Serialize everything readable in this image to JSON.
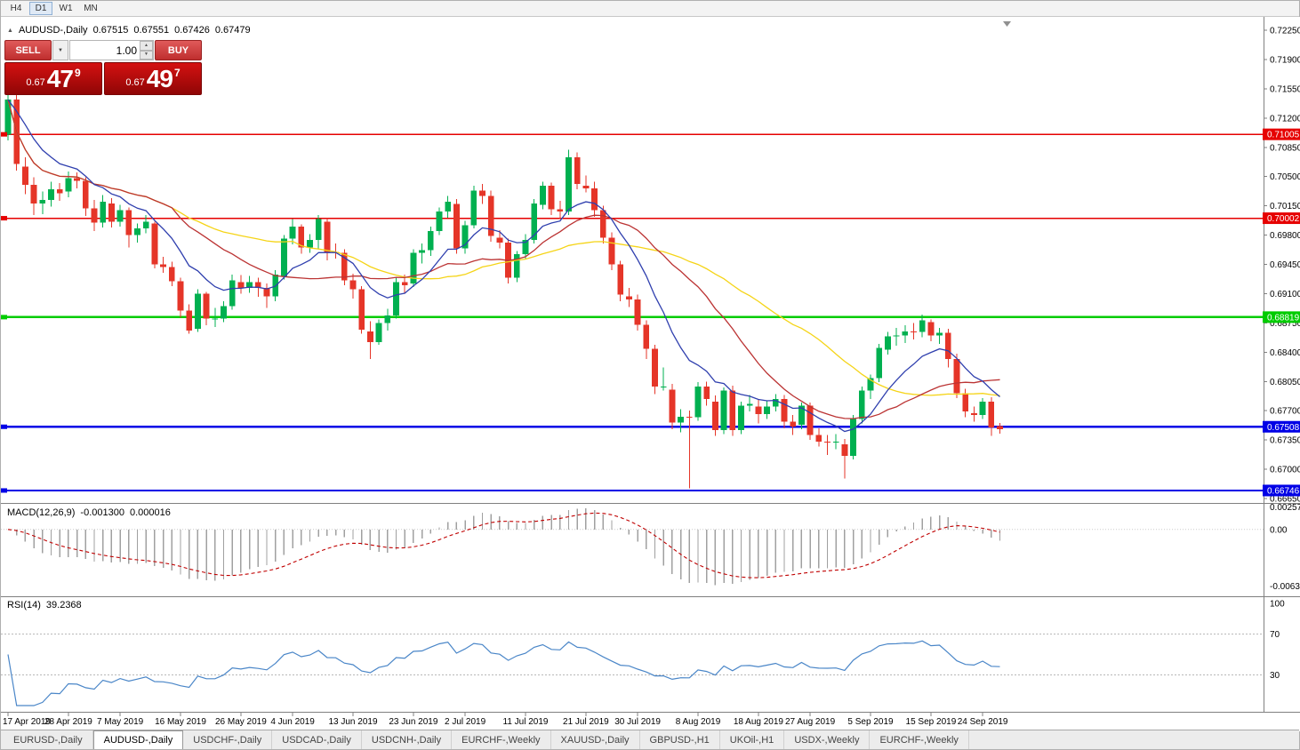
{
  "toolbar": {
    "timeframes": [
      {
        "label": "H4",
        "active": false
      },
      {
        "label": "D1",
        "active": true
      },
      {
        "label": "W1",
        "active": false
      },
      {
        "label": "MN",
        "active": false
      }
    ]
  },
  "header": {
    "symbol": "AUDUSD-,Daily",
    "open": "0.67515",
    "high": "0.67551",
    "low": "0.67426",
    "close": "0.67479"
  },
  "trade_widget": {
    "sell_label": "SELL",
    "buy_label": "BUY",
    "lot_size": "1.00",
    "sell_price": {
      "prefix": "0.67",
      "big": "47",
      "sup": "9"
    },
    "buy_price": {
      "prefix": "0.67",
      "big": "49",
      "sup": "7"
    }
  },
  "price_axis": {
    "labels": [
      "0.72250",
      "0.71900",
      "0.71550",
      "0.71200",
      "0.70850",
      "0.70500",
      "0.70150",
      "0.69800",
      "0.69450",
      "0.69100",
      "0.68750",
      "0.68400",
      "0.68050",
      "0.67700",
      "0.67350",
      "0.67000",
      "0.66650"
    ]
  },
  "indicators": {
    "macd": {
      "name": "MACD(12,26,9)",
      "value_main": "-0.001300",
      "value_signal": "0.000016",
      "axis_labels": {
        "max": "0.0025740",
        "zero": "0.00",
        "min": "-0.0063260"
      }
    },
    "rsi": {
      "name": "RSI(14)",
      "value": "39.2368",
      "levels": [
        "100",
        "70",
        "30"
      ]
    }
  },
  "time_axis": {
    "labels": [
      {
        "text": "17 Apr 2019",
        "i": 0
      },
      {
        "text": "28 Apr 2019",
        "i": 7
      },
      {
        "text": "7 May 2019",
        "i": 13
      },
      {
        "text": "16 May 2019",
        "i": 20
      },
      {
        "text": "26 May 2019",
        "i": 27
      },
      {
        "text": "4 Jun 2019",
        "i": 33
      },
      {
        "text": "13 Jun 2019",
        "i": 40
      },
      {
        "text": "23 Jun 2019",
        "i": 47
      },
      {
        "text": "2 Jul 2019",
        "i": 53
      },
      {
        "text": "11 Jul 2019",
        "i": 60
      },
      {
        "text": "21 Jul 2019",
        "i": 67
      },
      {
        "text": "30 Jul 2019",
        "i": 73
      },
      {
        "text": "8 Aug 2019",
        "i": 80
      },
      {
        "text": "18 Aug 2019",
        "i": 87
      },
      {
        "text": "27 Aug 2019",
        "i": 93
      },
      {
        "text": "5 Sep 2019",
        "i": 100
      },
      {
        "text": "15 Sep 2019",
        "i": 107
      },
      {
        "text": "24 Sep 2019",
        "i": 113
      }
    ]
  },
  "tabs": [
    {
      "label": "EURUSD-,Daily",
      "active": false
    },
    {
      "label": "AUDUSD-,Daily",
      "active": true
    },
    {
      "label": "USDCHF-,Daily",
      "active": false
    },
    {
      "label": "USDCAD-,Daily",
      "active": false
    },
    {
      "label": "USDCNH-,Daily",
      "active": false
    },
    {
      "label": "EURCHF-,Weekly",
      "active": false
    },
    {
      "label": "XAUUSD-,Daily",
      "active": false
    },
    {
      "label": "GBPUSD-,H1",
      "active": false
    },
    {
      "label": "UKOil-,H1",
      "active": false
    },
    {
      "label": "USDX-,Weekly",
      "active": false
    },
    {
      "label": "EURCHF-,Weekly",
      "active": false
    }
  ],
  "chart_data": {
    "type": "candlestick",
    "symbol": "AUDUSD-",
    "timeframe": "Daily",
    "up_color": "#00b050",
    "down_color": "#e53528",
    "hlines": [
      {
        "price": 0.71005,
        "label": "0.71005",
        "color": "#e60000",
        "width": 1.6
      },
      {
        "price": 0.70002,
        "label": "0.70002",
        "color": "#e60000",
        "width": 1.6
      },
      {
        "price": 0.68819,
        "label": "0.68819",
        "color": "#00cc00",
        "width": 2.4
      },
      {
        "price": 0.67508,
        "label": "0.67508",
        "color": "#0000e6",
        "width": 2.4
      },
      {
        "price": 0.66746,
        "label": "0.66746",
        "color": "#0000e6",
        "width": 2.4
      }
    ],
    "moving_averages": [
      {
        "name": "MA slow",
        "method": "sma",
        "period": 34,
        "color": "#f5d417"
      },
      {
        "name": "MA mid",
        "method": "sma",
        "period": 20,
        "color": "#bb3333"
      },
      {
        "name": "MA fast",
        "method": "ema",
        "period": 10,
        "color": "#2f3fae"
      }
    ],
    "macd": {
      "fast": 12,
      "slow": 26,
      "signal": 9,
      "scale_max": 0.002574,
      "scale_min": -0.006326,
      "histogram_color": "#a0a0a0",
      "signal_color": "#c00000"
    },
    "rsi": {
      "period": 14,
      "level_values": [
        100,
        70,
        30
      ],
      "line_color": "#4a86c8"
    },
    "candles": [
      [
        0.71,
        0.7152,
        0.7093,
        0.7142
      ],
      [
        0.7142,
        0.7149,
        0.7057,
        0.7065
      ],
      [
        0.7062,
        0.7073,
        0.7029,
        0.704
      ],
      [
        0.704,
        0.7049,
        0.7004,
        0.7018
      ],
      [
        0.7018,
        0.7032,
        0.7005,
        0.7022
      ],
      [
        0.7022,
        0.7044,
        0.7014,
        0.7035
      ],
      [
        0.7035,
        0.7042,
        0.7021,
        0.703
      ],
      [
        0.7032,
        0.7056,
        0.7025,
        0.7048
      ],
      [
        0.7048,
        0.7055,
        0.7036,
        0.7045
      ],
      [
        0.7045,
        0.7049,
        0.7003,
        0.7012
      ],
      [
        0.7012,
        0.7022,
        0.6985,
        0.6995
      ],
      [
        0.6995,
        0.7028,
        0.6989,
        0.702
      ],
      [
        0.7018,
        0.7024,
        0.6989,
        0.6996
      ],
      [
        0.6996,
        0.7016,
        0.699,
        0.701
      ],
      [
        0.701,
        0.7013,
        0.6965,
        0.698
      ],
      [
        0.698,
        0.6994,
        0.6971,
        0.6988
      ],
      [
        0.6988,
        0.7004,
        0.6982,
        0.6996
      ],
      [
        0.6994,
        0.6996,
        0.694,
        0.6945
      ],
      [
        0.6945,
        0.6954,
        0.6935,
        0.6942
      ],
      [
        0.6942,
        0.6948,
        0.6919,
        0.6925
      ],
      [
        0.6925,
        0.6929,
        0.6881,
        0.689
      ],
      [
        0.689,
        0.6897,
        0.6862,
        0.6866
      ],
      [
        0.6868,
        0.6915,
        0.6864,
        0.691
      ],
      [
        0.691,
        0.6912,
        0.6872,
        0.688
      ],
      [
        0.688,
        0.6893,
        0.687,
        0.688
      ],
      [
        0.688,
        0.6901,
        0.6876,
        0.6895
      ],
      [
        0.6895,
        0.6933,
        0.6891,
        0.6926
      ],
      [
        0.6924,
        0.6932,
        0.691,
        0.6917
      ],
      [
        0.6917,
        0.6931,
        0.6911,
        0.6924
      ],
      [
        0.6924,
        0.6929,
        0.6906,
        0.6917
      ],
      [
        0.6917,
        0.6922,
        0.6893,
        0.6907
      ],
      [
        0.6907,
        0.6938,
        0.6901,
        0.6933
      ],
      [
        0.693,
        0.698,
        0.6927,
        0.6976
      ],
      [
        0.6976,
        0.6999,
        0.6969,
        0.699
      ],
      [
        0.699,
        0.6993,
        0.6958,
        0.6965
      ],
      [
        0.6965,
        0.6981,
        0.6959,
        0.6974
      ],
      [
        0.6974,
        0.7004,
        0.6963,
        0.6999
      ],
      [
        0.6996,
        0.7,
        0.695,
        0.696
      ],
      [
        0.696,
        0.697,
        0.6952,
        0.6959
      ],
      [
        0.6959,
        0.6963,
        0.692,
        0.6926
      ],
      [
        0.6926,
        0.6934,
        0.6904,
        0.6915
      ],
      [
        0.6915,
        0.6919,
        0.6862,
        0.6867
      ],
      [
        0.6865,
        0.6877,
        0.6832,
        0.6852
      ],
      [
        0.6852,
        0.6879,
        0.6849,
        0.6875
      ],
      [
        0.6875,
        0.6892,
        0.6866,
        0.6884
      ],
      [
        0.6884,
        0.6929,
        0.688,
        0.6924
      ],
      [
        0.6924,
        0.6933,
        0.6911,
        0.692
      ],
      [
        0.6922,
        0.6963,
        0.6918,
        0.6959
      ],
      [
        0.6959,
        0.697,
        0.6946,
        0.6962
      ],
      [
        0.6962,
        0.699,
        0.6955,
        0.6985
      ],
      [
        0.6985,
        0.7013,
        0.698,
        0.7008
      ],
      [
        0.7008,
        0.7027,
        0.7001,
        0.702
      ],
      [
        0.7017,
        0.7023,
        0.6958,
        0.6964
      ],
      [
        0.6964,
        0.6997,
        0.6958,
        0.6992
      ],
      [
        0.6992,
        0.7039,
        0.6988,
        0.7033
      ],
      [
        0.7033,
        0.7041,
        0.7017,
        0.7027
      ],
      [
        0.7027,
        0.7033,
        0.6972,
        0.6979
      ],
      [
        0.6977,
        0.6986,
        0.6964,
        0.6971
      ],
      [
        0.6971,
        0.6976,
        0.6922,
        0.6929
      ],
      [
        0.6929,
        0.6961,
        0.6924,
        0.6957
      ],
      [
        0.6957,
        0.6981,
        0.6951,
        0.6974
      ],
      [
        0.6974,
        0.7023,
        0.697,
        0.7018
      ],
      [
        0.7016,
        0.7044,
        0.7011,
        0.7039
      ],
      [
        0.7039,
        0.7043,
        0.7004,
        0.7011
      ],
      [
        0.7011,
        0.7021,
        0.6999,
        0.7008
      ],
      [
        0.7008,
        0.7082,
        0.7004,
        0.7073
      ],
      [
        0.7073,
        0.7079,
        0.7035,
        0.7041
      ],
      [
        0.7039,
        0.7051,
        0.7031,
        0.7036
      ],
      [
        0.7036,
        0.7044,
        0.7002,
        0.701
      ],
      [
        0.701,
        0.7015,
        0.697,
        0.6977
      ],
      [
        0.6977,
        0.6983,
        0.6938,
        0.6945
      ],
      [
        0.6945,
        0.6949,
        0.6901,
        0.6909
      ],
      [
        0.6907,
        0.6917,
        0.6894,
        0.6903
      ],
      [
        0.6903,
        0.6909,
        0.6866,
        0.6873
      ],
      [
        0.6873,
        0.6878,
        0.6832,
        0.6844
      ],
      [
        0.6844,
        0.6849,
        0.679,
        0.6799
      ],
      [
        0.6799,
        0.6822,
        0.6794,
        0.6799
      ],
      [
        0.6795,
        0.6802,
        0.6748,
        0.6756
      ],
      [
        0.6756,
        0.6772,
        0.6744,
        0.6763
      ],
      [
        0.6763,
        0.677,
        0.6677,
        0.6762
      ],
      [
        0.6762,
        0.6804,
        0.6758,
        0.6799
      ],
      [
        0.6799,
        0.6805,
        0.6776,
        0.6784
      ],
      [
        0.6781,
        0.6788,
        0.674,
        0.6747
      ],
      [
        0.6747,
        0.6798,
        0.6742,
        0.6794
      ],
      [
        0.6794,
        0.68,
        0.674,
        0.6747
      ],
      [
        0.6747,
        0.6781,
        0.6742,
        0.6776
      ],
      [
        0.6776,
        0.6789,
        0.6769,
        0.6778
      ],
      [
        0.6775,
        0.6783,
        0.6755,
        0.6766
      ],
      [
        0.6766,
        0.6782,
        0.676,
        0.6775
      ],
      [
        0.6775,
        0.679,
        0.6769,
        0.6784
      ],
      [
        0.6784,
        0.6789,
        0.6749,
        0.6757
      ],
      [
        0.6757,
        0.6765,
        0.6741,
        0.6751
      ],
      [
        0.6753,
        0.678,
        0.6748,
        0.6776
      ],
      [
        0.6776,
        0.678,
        0.6735,
        0.6741
      ],
      [
        0.6741,
        0.6749,
        0.6727,
        0.6733
      ],
      [
        0.6733,
        0.6741,
        0.6717,
        0.6732
      ],
      [
        0.6732,
        0.6742,
        0.6724,
        0.6733
      ],
      [
        0.673,
        0.6736,
        0.6689,
        0.6716
      ],
      [
        0.6716,
        0.6765,
        0.6712,
        0.676
      ],
      [
        0.676,
        0.6799,
        0.6755,
        0.6794
      ],
      [
        0.6794,
        0.6813,
        0.6784,
        0.6809
      ],
      [
        0.6809,
        0.685,
        0.6804,
        0.6845
      ],
      [
        0.6843,
        0.6864,
        0.6837,
        0.6859
      ],
      [
        0.6859,
        0.6869,
        0.6848,
        0.686
      ],
      [
        0.686,
        0.6872,
        0.6851,
        0.6865
      ],
      [
        0.6865,
        0.6875,
        0.6855,
        0.6864
      ],
      [
        0.6864,
        0.6885,
        0.6858,
        0.6878
      ],
      [
        0.6876,
        0.6879,
        0.6853,
        0.686
      ],
      [
        0.686,
        0.6869,
        0.685,
        0.6863
      ],
      [
        0.6863,
        0.6868,
        0.6822,
        0.6832
      ],
      [
        0.6832,
        0.6838,
        0.6785,
        0.6791
      ],
      [
        0.6791,
        0.6796,
        0.6762,
        0.6769
      ],
      [
        0.6767,
        0.6775,
        0.6757,
        0.6765
      ],
      [
        0.6765,
        0.6785,
        0.676,
        0.6781
      ],
      [
        0.6781,
        0.6786,
        0.674,
        0.675
      ],
      [
        0.67515,
        0.67551,
        0.67426,
        0.67479
      ]
    ]
  }
}
